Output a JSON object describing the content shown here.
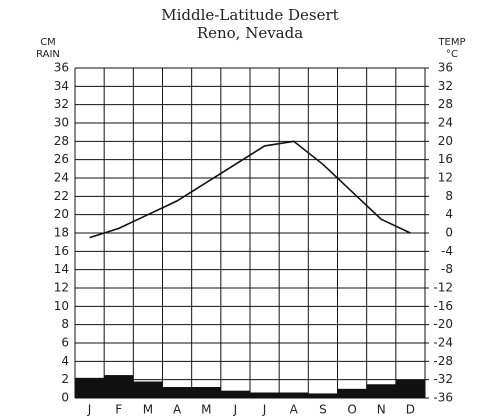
{
  "chart_data": {
    "type": "climograph",
    "title": "Middle-Latitude Desert",
    "subtitle": "Reno, Nevada",
    "ylabel": [
      "CM",
      "RAIN"
    ],
    "y2label": [
      "TEMP",
      "°C"
    ],
    "categories": [
      "J",
      "F",
      "M",
      "A",
      "M",
      "J",
      "J",
      "A",
      "S",
      "O",
      "N",
      "D"
    ],
    "bars": {
      "color": "#111111",
      "values": [
        2.2,
        2.5,
        1.8,
        1.2,
        1.2,
        0.8,
        0.6,
        0.6,
        0.5,
        1.0,
        1.5,
        2.0
      ]
    },
    "line": {
      "color": "#111111",
      "axis": "y2",
      "values": [
        -1,
        1,
        4,
        7,
        11,
        15,
        19,
        20,
        15,
        9,
        3,
        0
      ]
    },
    "ylim": [
      0,
      36
    ],
    "yticks": [
      0,
      2,
      4,
      6,
      8,
      10,
      12,
      14,
      16,
      18,
      20,
      22,
      24,
      26,
      28,
      30,
      32,
      34,
      36
    ],
    "y2lim": [
      -36,
      36
    ],
    "y2ticks": [
      -36,
      -32,
      -28,
      -24,
      -20,
      -16,
      -12,
      -8,
      -4,
      0,
      4,
      8,
      12,
      16,
      20,
      24,
      28,
      32,
      36
    ],
    "grid": true
  }
}
